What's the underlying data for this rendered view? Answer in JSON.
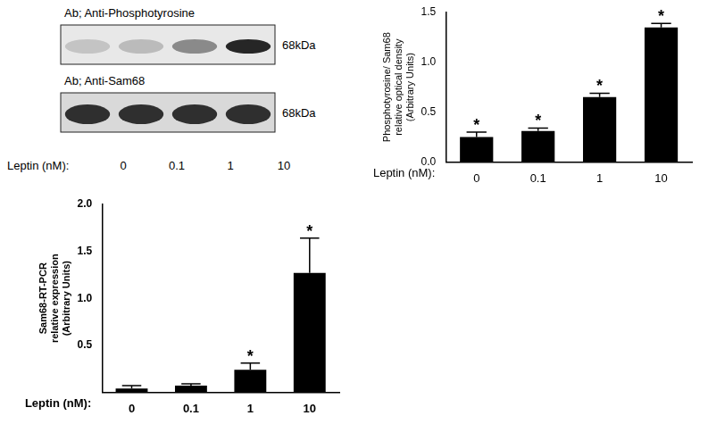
{
  "blot": {
    "panels": [
      {
        "antibody": "Ab; Anti-Phosphotyrosine",
        "size": "68kDa"
      },
      {
        "antibody": "Ab; Anti-Sam68",
        "size": "68kDa"
      }
    ],
    "lane_label": "Leptin (nM):",
    "lanes": [
      "0",
      "0.1",
      "1",
      "10"
    ]
  },
  "chart_data": [
    {
      "type": "bar",
      "x_label": "Leptin (nM):",
      "y_label": [
        "Phosphotyrosine/ Sam68",
        "relative optical density",
        "(Arbitrary Units)"
      ],
      "categories": [
        "0",
        "0.1",
        "1",
        "10"
      ],
      "values": [
        0.25,
        0.31,
        0.65,
        1.35
      ],
      "errors": [
        0.05,
        0.03,
        0.04,
        0.04
      ],
      "annotations": [
        "*",
        "*",
        "*",
        "*"
      ],
      "color": "#000000",
      "ylim": [
        0,
        1.5
      ],
      "yticks": [
        {
          "value": 0,
          "label": "0.0"
        },
        0.5,
        {
          "value": 1,
          "label": "1.0"
        },
        1.5
      ],
      "grid": false
    },
    {
      "type": "bar",
      "x_label": "Leptin (nM):",
      "y_label": [
        "Sam68-RT-PCR",
        "relative expression",
        "(Arbitrary Units)"
      ],
      "categories": [
        "0",
        "0.1",
        "1",
        "10"
      ],
      "values": [
        0.04,
        0.07,
        0.24,
        1.27
      ],
      "errors": [
        0.03,
        0.02,
        0.07,
        0.37
      ],
      "annotations": [
        null,
        null,
        "*",
        "*"
      ],
      "color": "#000000",
      "ylim": [
        0,
        2
      ],
      "yticks": [
        0.5,
        {
          "value": 1,
          "label": "1.0"
        },
        1.5,
        {
          "value": 2,
          "label": "2.0"
        }
      ],
      "grid": false
    }
  ]
}
